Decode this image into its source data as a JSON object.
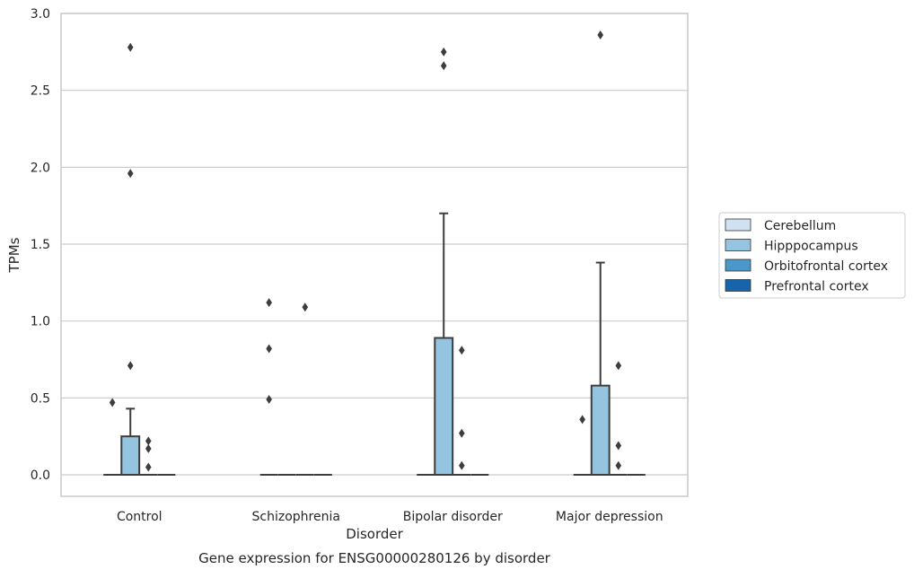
{
  "chart_data": {
    "type": "box",
    "title": "",
    "caption": "Gene expression for ENSG00000280126 by disorder",
    "xlabel": "Disorder",
    "ylabel": "TPMs",
    "ylim": [
      -0.14,
      3.0
    ],
    "yticks": [
      0.0,
      0.5,
      1.0,
      1.5,
      2.0,
      2.5,
      3.0
    ],
    "ytick_labels": [
      "0.0",
      "0.5",
      "1.0",
      "1.5",
      "2.0",
      "2.5",
      "3.0"
    ],
    "grid": "horizontal",
    "legend_position": "right",
    "categories": [
      "Control",
      "Schizophrenia",
      "Bipolar disorder",
      "Major depression"
    ],
    "series": [
      {
        "name": "Cerebellum",
        "color": "#d0e1f2",
        "boxes": [
          {
            "category": "Control",
            "q1": 0,
            "median": 0,
            "q3": 0,
            "whisker_low": 0,
            "whisker_high": 0,
            "outliers": [
              0.47
            ]
          },
          {
            "category": "Schizophrenia",
            "q1": 0,
            "median": 0,
            "q3": 0,
            "whisker_low": 0,
            "whisker_high": 0,
            "outliers": [
              0.49,
              0.82,
              1.12
            ]
          },
          {
            "category": "Bipolar disorder",
            "q1": 0,
            "median": 0,
            "q3": 0,
            "whisker_low": 0,
            "whisker_high": 0,
            "outliers": []
          },
          {
            "category": "Major depression",
            "q1": 0,
            "median": 0,
            "q3": 0,
            "whisker_low": 0,
            "whisker_high": 0,
            "outliers": [
              0.36
            ]
          }
        ]
      },
      {
        "name": "Hipppocampus",
        "color": "#94c4df",
        "boxes": [
          {
            "category": "Control",
            "q1": 0,
            "median": 0,
            "q3": 0.25,
            "whisker_low": 0,
            "whisker_high": 0.43,
            "outliers": [
              0.71,
              1.96,
              2.78
            ]
          },
          {
            "category": "Schizophrenia",
            "q1": 0,
            "median": 0,
            "q3": 0,
            "whisker_low": 0,
            "whisker_high": 0,
            "outliers": []
          },
          {
            "category": "Bipolar disorder",
            "q1": 0,
            "median": 0,
            "q3": 0.89,
            "whisker_low": 0,
            "whisker_high": 1.7,
            "outliers": [
              2.66,
              2.75
            ]
          },
          {
            "category": "Major depression",
            "q1": 0,
            "median": 0,
            "q3": 0.58,
            "whisker_low": 0,
            "whisker_high": 1.38,
            "outliers": [
              2.86
            ]
          }
        ]
      },
      {
        "name": "Orbitofrontal cortex",
        "color": "#4a98c9",
        "boxes": [
          {
            "category": "Control",
            "q1": 0,
            "median": 0,
            "q3": 0,
            "whisker_low": 0,
            "whisker_high": 0,
            "outliers": [
              0.05,
              0.17,
              0.22
            ]
          },
          {
            "category": "Schizophrenia",
            "q1": 0,
            "median": 0,
            "q3": 0,
            "whisker_low": 0,
            "whisker_high": 0,
            "outliers": [
              1.09
            ]
          },
          {
            "category": "Bipolar disorder",
            "q1": 0,
            "median": 0,
            "q3": 0,
            "whisker_low": 0,
            "whisker_high": 0,
            "outliers": [
              0.06,
              0.27,
              0.81
            ]
          },
          {
            "category": "Major depression",
            "q1": 0,
            "median": 0,
            "q3": 0,
            "whisker_low": 0,
            "whisker_high": 0,
            "outliers": [
              0.06,
              0.19,
              0.71
            ]
          }
        ]
      },
      {
        "name": "Prefrontal cortex",
        "color": "#1764ab",
        "boxes": [
          {
            "category": "Control",
            "q1": 0,
            "median": 0,
            "q3": 0,
            "whisker_low": 0,
            "whisker_high": 0,
            "outliers": []
          },
          {
            "category": "Schizophrenia",
            "q1": 0,
            "median": 0,
            "q3": 0,
            "whisker_low": 0,
            "whisker_high": 0,
            "outliers": []
          },
          {
            "category": "Bipolar disorder",
            "q1": 0,
            "median": 0,
            "q3": 0,
            "whisker_low": 0,
            "whisker_high": 0,
            "outliers": []
          },
          {
            "category": "Major depression",
            "q1": 0,
            "median": 0,
            "q3": 0,
            "whisker_low": 0,
            "whisker_high": 0,
            "outliers": []
          }
        ]
      }
    ]
  }
}
